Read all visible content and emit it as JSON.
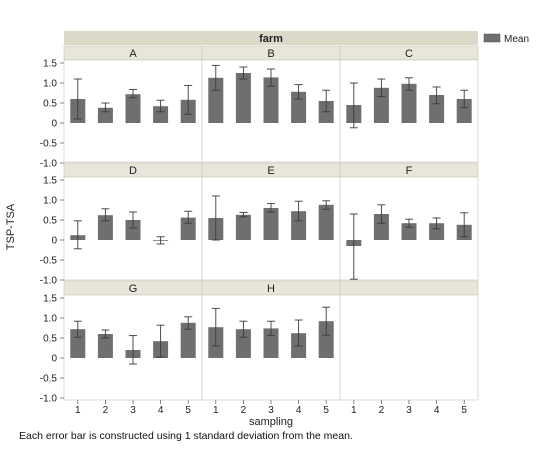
{
  "chart_data": {
    "type": "bar",
    "overall_group_label": "farm",
    "xlabel": "sampling",
    "ylabel": "TSP-TSA",
    "legend": {
      "entries": [
        "Mean"
      ],
      "placement": "top-right",
      "color": "#6f6f6f"
    },
    "categories": [
      "1",
      "2",
      "3",
      "4",
      "5"
    ],
    "ylim": [
      -1.0,
      1.5
    ],
    "yticks": [
      "1.5",
      "1.0",
      "0.5",
      "0",
      "-0.5",
      "-1.0"
    ],
    "grid": false,
    "bar_color": "#6f6f6f",
    "panels": [
      {
        "name": "A",
        "means": [
          0.6,
          0.38,
          0.72,
          0.42,
          0.58
        ],
        "error_low": [
          0.1,
          0.28,
          0.63,
          0.28,
          0.22
        ],
        "error_high": [
          1.1,
          0.5,
          0.84,
          0.57,
          0.94
        ]
      },
      {
        "name": "B",
        "means": [
          1.13,
          1.25,
          1.14,
          0.78,
          0.55
        ],
        "error_low": [
          0.82,
          1.1,
          0.92,
          0.6,
          0.28
        ],
        "error_high": [
          1.44,
          1.4,
          1.35,
          0.96,
          0.82
        ]
      },
      {
        "name": "C",
        "means": [
          0.45,
          0.88,
          0.98,
          0.7,
          0.6
        ],
        "error_low": [
          -0.12,
          0.66,
          0.82,
          0.48,
          0.38
        ],
        "error_high": [
          1.0,
          1.1,
          1.13,
          0.9,
          0.82
        ]
      },
      {
        "name": "D",
        "means": [
          0.12,
          0.62,
          0.5,
          -0.02,
          0.56
        ],
        "error_low": [
          -0.22,
          0.48,
          0.3,
          -0.1,
          0.42
        ],
        "error_high": [
          0.48,
          0.78,
          0.7,
          0.08,
          0.72
        ]
      },
      {
        "name": "E",
        "means": [
          0.55,
          0.63,
          0.8,
          0.72,
          0.88
        ],
        "error_low": [
          0.0,
          0.58,
          0.7,
          0.48,
          0.77
        ],
        "error_high": [
          1.1,
          0.69,
          0.91,
          0.97,
          0.98
        ]
      },
      {
        "name": "F",
        "means": [
          -0.15,
          0.65,
          0.42,
          0.42,
          0.38
        ],
        "error_low": [
          -0.98,
          0.42,
          0.32,
          0.28,
          0.08
        ],
        "error_high": [
          0.65,
          0.88,
          0.52,
          0.55,
          0.68
        ]
      },
      {
        "name": "G",
        "means": [
          0.72,
          0.6,
          0.2,
          0.42,
          0.88
        ],
        "error_low": [
          0.52,
          0.5,
          -0.15,
          0.02,
          0.72
        ],
        "error_high": [
          0.92,
          0.7,
          0.56,
          0.82,
          1.03
        ]
      },
      {
        "name": "H",
        "means": [
          0.77,
          0.72,
          0.74,
          0.62,
          0.92
        ],
        "error_low": [
          0.3,
          0.52,
          0.56,
          0.3,
          0.57
        ],
        "error_high": [
          1.24,
          0.92,
          0.92,
          0.95,
          1.27
        ]
      }
    ],
    "footnote": "Each error bar is constructed using 1 standard deviation from the mean."
  }
}
